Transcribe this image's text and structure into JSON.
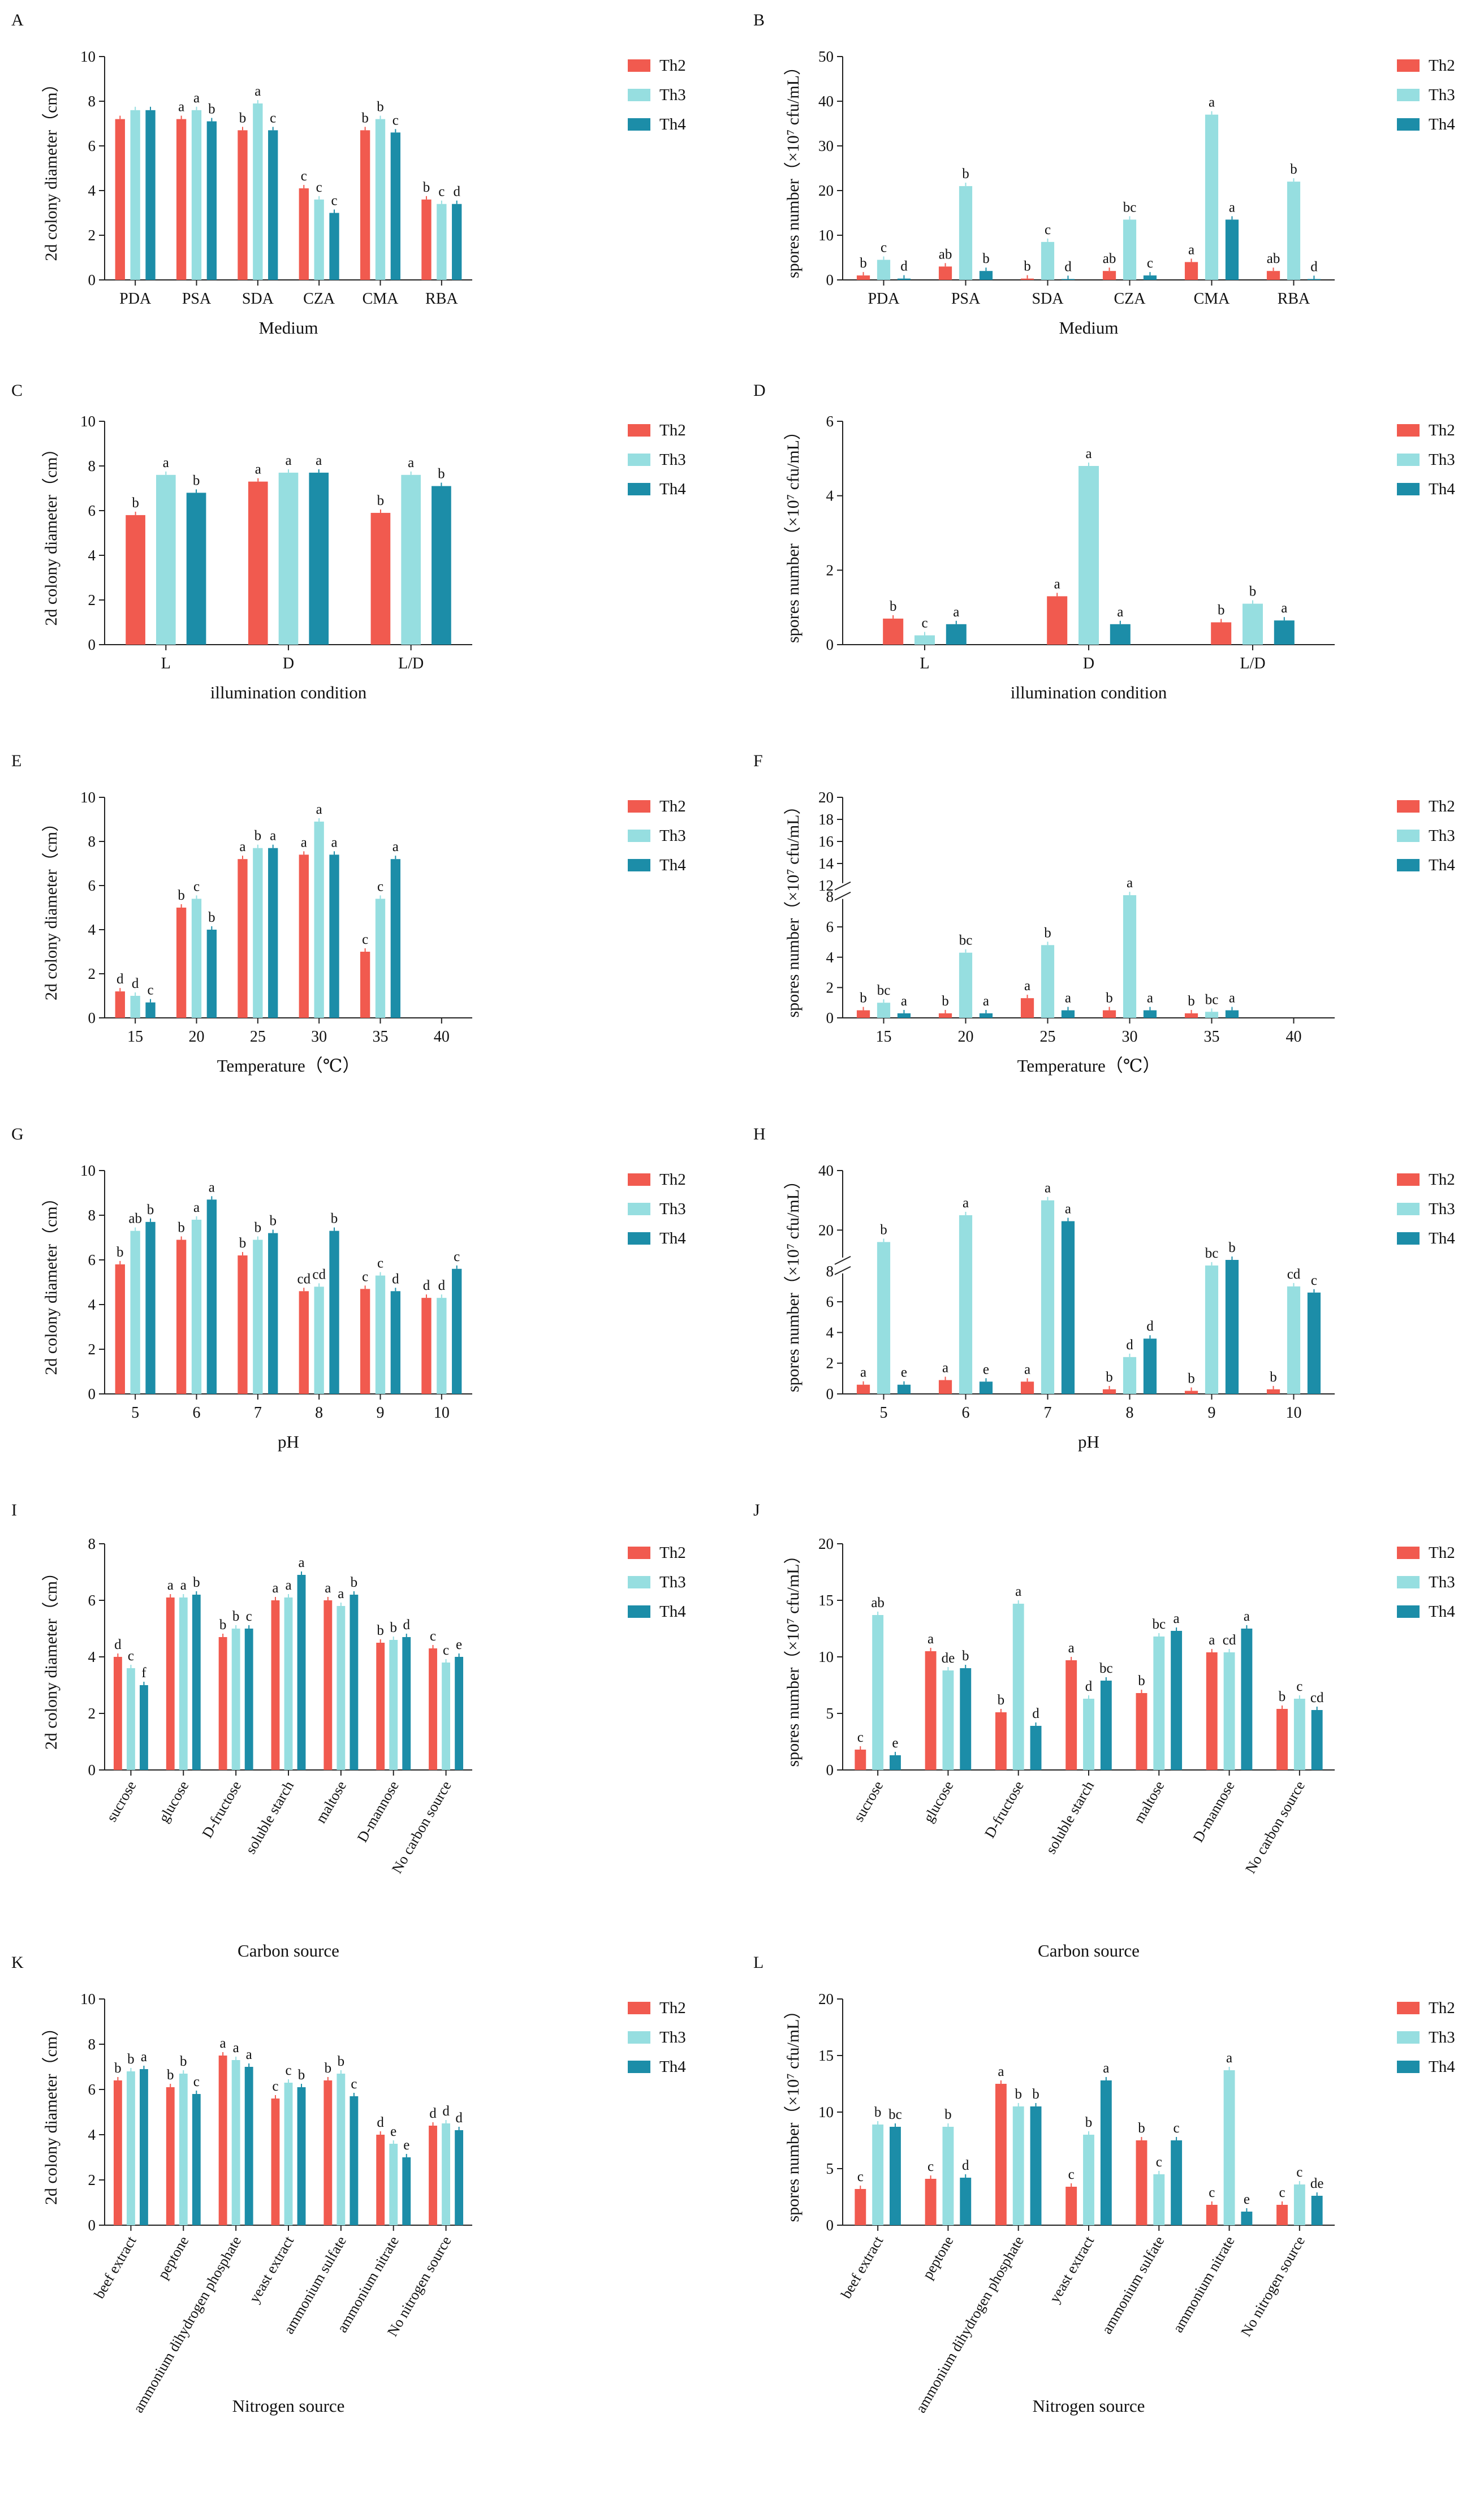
{
  "colors": {
    "Th2": "#f15a4f",
    "Th3": "#96dee0",
    "Th4": "#1c8da8",
    "axis": "#222222"
  },
  "chart_data": [
    {
      "panel": "A",
      "type": "bar",
      "ylabel": "2d colony diameter（cm）",
      "xlabel": "Medium",
      "ylim": [
        0,
        10
      ],
      "yticks": [
        0,
        2,
        4,
        6,
        8,
        10
      ],
      "categories": [
        "PDA",
        "PSA",
        "SDA",
        "CZA",
        "CMA",
        "RBA"
      ],
      "series": [
        {
          "name": "Th2",
          "values": [
            7.2,
            7.2,
            6.7,
            4.1,
            6.7,
            3.6
          ],
          "letters": [
            "",
            "a",
            "b",
            "c",
            "b",
            "b"
          ]
        },
        {
          "name": "Th3",
          "values": [
            7.6,
            7.6,
            7.9,
            3.6,
            7.2,
            3.4
          ],
          "letters": [
            "",
            "a",
            "a",
            "c",
            "b",
            "c"
          ]
        },
        {
          "name": "Th4",
          "values": [
            7.6,
            7.1,
            6.7,
            3.0,
            6.6,
            3.4
          ],
          "letters": [
            "",
            "b",
            "c",
            "c",
            "c",
            "d"
          ]
        }
      ],
      "legend": [
        "Th2",
        "Th3",
        "Th4"
      ]
    },
    {
      "panel": "B",
      "type": "bar",
      "ylabel": "spores number（×10⁷ cfu/mL）",
      "xlabel": "Medium",
      "ylim": [
        0,
        50
      ],
      "yticks": [
        0,
        10,
        20,
        30,
        40,
        50
      ],
      "categories": [
        "PDA",
        "PSA",
        "SDA",
        "CZA",
        "CMA",
        "RBA"
      ],
      "series": [
        {
          "name": "Th2",
          "values": [
            1.0,
            3.0,
            0.3,
            2.0,
            4.0,
            2.0
          ],
          "letters": [
            "b",
            "ab",
            "b",
            "ab",
            "a",
            "ab"
          ]
        },
        {
          "name": "Th3",
          "values": [
            4.5,
            21,
            8.5,
            13.5,
            37,
            22
          ],
          "letters": [
            "c",
            "b",
            "c",
            "bc",
            "a",
            "b"
          ]
        },
        {
          "name": "Th4",
          "values": [
            0.3,
            2.0,
            0.2,
            1.0,
            13.5,
            0.2
          ],
          "letters": [
            "d",
            "b",
            "d",
            "c",
            "a",
            "d"
          ]
        }
      ],
      "legend": [
        "Th2",
        "Th3",
        "Th4"
      ]
    },
    {
      "panel": "C",
      "type": "bar",
      "ylabel": "2d colony diameter（cm）",
      "xlabel": "illumination condition",
      "ylim": [
        0,
        10
      ],
      "yticks": [
        0,
        2,
        4,
        6,
        8,
        10
      ],
      "categories": [
        "L",
        "D",
        "L/D"
      ],
      "series": [
        {
          "name": "Th2",
          "values": [
            5.8,
            7.3,
            5.9
          ],
          "letters": [
            "b",
            "a",
            "b"
          ]
        },
        {
          "name": "Th3",
          "values": [
            7.6,
            7.7,
            7.6
          ],
          "letters": [
            "a",
            "a",
            "a"
          ]
        },
        {
          "name": "Th4",
          "values": [
            6.8,
            7.7,
            7.1
          ],
          "letters": [
            "b",
            "a",
            "b"
          ]
        }
      ],
      "legend": [
        "Th2",
        "Th3",
        "Th4"
      ]
    },
    {
      "panel": "D",
      "type": "bar",
      "ylabel": "spores number（×10⁷ cfu/mL）",
      "xlabel": "illumination condition",
      "ylim": [
        0,
        6
      ],
      "yticks": [
        0,
        2,
        4,
        6
      ],
      "categories": [
        "L",
        "D",
        "L/D"
      ],
      "series": [
        {
          "name": "Th2",
          "values": [
            0.7,
            1.3,
            0.6
          ],
          "letters": [
            "b",
            "a",
            "b"
          ]
        },
        {
          "name": "Th3",
          "values": [
            0.25,
            4.8,
            1.1
          ],
          "letters": [
            "c",
            "a",
            "b"
          ]
        },
        {
          "name": "Th4",
          "values": [
            0.55,
            0.55,
            0.65
          ],
          "letters": [
            "a",
            "a",
            "a"
          ]
        }
      ],
      "legend": [
        "Th2",
        "Th3",
        "Th4"
      ]
    },
    {
      "panel": "E",
      "type": "bar",
      "ylabel": "2d colony diameter（cm）",
      "xlabel": "Temperature（℃）",
      "ylim": [
        0,
        10
      ],
      "yticks": [
        0,
        2,
        4,
        6,
        8,
        10
      ],
      "categories": [
        "15",
        "20",
        "25",
        "30",
        "35",
        "40"
      ],
      "series": [
        {
          "name": "Th2",
          "values": [
            1.2,
            5.0,
            7.2,
            7.4,
            3.0,
            0
          ],
          "letters": [
            "d",
            "b",
            "a",
            "a",
            "c",
            ""
          ]
        },
        {
          "name": "Th3",
          "values": [
            1.0,
            5.4,
            7.7,
            8.9,
            5.4,
            0
          ],
          "letters": [
            "d",
            "c",
            "b",
            "a",
            "c",
            ""
          ]
        },
        {
          "name": "Th4",
          "values": [
            0.7,
            4.0,
            7.7,
            7.4,
            7.2,
            0
          ],
          "letters": [
            "c",
            "b",
            "a",
            "a",
            "a",
            ""
          ]
        }
      ],
      "legend": [
        "Th2",
        "Th3",
        "Th4"
      ]
    },
    {
      "panel": "F",
      "type": "bar",
      "ylabel": "spores number（×10⁷ cfu/mL）",
      "xlabel": "Temperature（℃）",
      "ylim": [
        0,
        20
      ],
      "yticks": [
        0,
        2,
        4,
        6,
        8,
        12,
        14,
        16,
        18,
        20
      ],
      "axis_break": [
        8,
        12
      ],
      "categories": [
        "15",
        "20",
        "25",
        "30",
        "35",
        "40"
      ],
      "series": [
        {
          "name": "Th2",
          "values": [
            0.5,
            0.3,
            1.3,
            0.5,
            0.3,
            0
          ],
          "letters": [
            "b",
            "b",
            "a",
            "b",
            "b",
            ""
          ]
        },
        {
          "name": "Th3",
          "values": [
            1.0,
            4.3,
            4.8,
            8.5,
            0.4,
            0
          ],
          "letters": [
            "bc",
            "bc",
            "b",
            "a",
            "bc",
            ""
          ]
        },
        {
          "name": "Th4",
          "values": [
            0.3,
            0.3,
            0.5,
            0.5,
            0.5,
            0
          ],
          "letters": [
            "a",
            "a",
            "a",
            "a",
            "a",
            ""
          ]
        }
      ],
      "legend": [
        "Th2",
        "Th3",
        "Th4"
      ]
    },
    {
      "panel": "G",
      "type": "bar",
      "ylabel": "2d colony diameter（cm）",
      "xlabel": "pH",
      "ylim": [
        0,
        10
      ],
      "yticks": [
        0,
        2,
        4,
        6,
        8,
        10
      ],
      "categories": [
        "5",
        "6",
        "7",
        "8",
        "9",
        "10"
      ],
      "series": [
        {
          "name": "Th2",
          "values": [
            5.8,
            6.9,
            6.2,
            4.6,
            4.7,
            4.3
          ],
          "letters": [
            "b",
            "b",
            "b",
            "cd",
            "c",
            "d"
          ]
        },
        {
          "name": "Th3",
          "values": [
            7.3,
            7.8,
            6.9,
            4.8,
            5.3,
            4.3
          ],
          "letters": [
            "ab",
            "a",
            "b",
            "cd",
            "c",
            "d"
          ]
        },
        {
          "name": "Th4",
          "values": [
            7.7,
            8.7,
            7.2,
            7.3,
            4.6,
            5.6
          ],
          "letters": [
            "b",
            "a",
            "b",
            "b",
            "d",
            "c"
          ]
        }
      ],
      "legend": [
        "Th2",
        "Th3",
        "Th4"
      ]
    },
    {
      "panel": "H",
      "type": "bar",
      "ylabel": "spores number（×10⁷ cfu/mL）",
      "xlabel": "pH",
      "ylim": [
        0,
        40
      ],
      "yticks": [
        0,
        2,
        4,
        6,
        8,
        20,
        40
      ],
      "axis_break": [
        8,
        10
      ],
      "categories": [
        "5",
        "6",
        "7",
        "8",
        "9",
        "10"
      ],
      "series": [
        {
          "name": "Th2",
          "values": [
            0.6,
            0.9,
            0.8,
            0.3,
            0.2,
            0.3
          ],
          "letters": [
            "a",
            "a",
            "a",
            "b",
            "b",
            "b"
          ]
        },
        {
          "name": "Th3",
          "values": [
            16,
            25,
            30,
            2.4,
            9,
            7
          ],
          "letters": [
            "b",
            "a",
            "a",
            "d",
            "bc",
            "cd"
          ]
        },
        {
          "name": "Th4",
          "values": [
            0.6,
            0.8,
            23,
            3.6,
            10,
            6.6
          ],
          "letters": [
            "e",
            "e",
            "a",
            "d",
            "b",
            "c"
          ]
        }
      ],
      "legend": [
        "Th2",
        "Th3",
        "Th4"
      ]
    },
    {
      "panel": "I",
      "type": "bar",
      "ylabel": "2d colony diameter（cm）",
      "xlabel": "Carbon source",
      "ylim": [
        0,
        8
      ],
      "yticks": [
        0,
        2,
        4,
        6,
        8
      ],
      "rotate_labels": true,
      "categories": [
        "sucrose",
        "glucose",
        "D-fructose",
        "soluble starch",
        "maltose",
        "D-mannose",
        "No carbon source"
      ],
      "series": [
        {
          "name": "Th2",
          "values": [
            4.0,
            6.1,
            4.7,
            6.0,
            6.0,
            4.5,
            4.3
          ],
          "letters": [
            "d",
            "a",
            "b",
            "a",
            "a",
            "b",
            "c"
          ]
        },
        {
          "name": "Th3",
          "values": [
            3.6,
            6.1,
            5.0,
            6.1,
            5.8,
            4.6,
            3.8
          ],
          "letters": [
            "c",
            "a",
            "b",
            "a",
            "a",
            "b",
            "c"
          ]
        },
        {
          "name": "Th4",
          "values": [
            3.0,
            6.2,
            5.0,
            6.9,
            6.2,
            4.7,
            4.0
          ],
          "letters": [
            "f",
            "b",
            "c",
            "a",
            "b",
            "d",
            "e"
          ]
        }
      ],
      "legend": [
        "Th2",
        "Th3",
        "Th4"
      ]
    },
    {
      "panel": "J",
      "type": "bar",
      "ylabel": "spores number（×10⁷ cfu/mL）",
      "xlabel": "Carbon source",
      "ylim": [
        0,
        20
      ],
      "yticks": [
        0,
        5,
        10,
        15,
        20
      ],
      "rotate_labels": true,
      "categories": [
        "sucrose",
        "glucose",
        "D-fructose",
        "soluble starch",
        "maltose",
        "D-mannose",
        "No carbon source"
      ],
      "series": [
        {
          "name": "Th2",
          "values": [
            1.8,
            10.5,
            5.1,
            9.7,
            6.8,
            10.4,
            5.4
          ],
          "letters": [
            "c",
            "a",
            "b",
            "a",
            "b",
            "a",
            "b"
          ]
        },
        {
          "name": "Th3",
          "values": [
            13.7,
            8.8,
            14.7,
            6.3,
            11.8,
            10.4,
            6.3
          ],
          "letters": [
            "ab",
            "de",
            "a",
            "d",
            "bc",
            "cd",
            "c"
          ]
        },
        {
          "name": "Th4",
          "values": [
            1.3,
            9.0,
            3.9,
            7.9,
            12.3,
            12.5,
            5.3
          ],
          "letters": [
            "e",
            "b",
            "d",
            "bc",
            "a",
            "a",
            "cd"
          ]
        }
      ],
      "legend": [
        "Th2",
        "Th3",
        "Th4"
      ]
    },
    {
      "panel": "K",
      "type": "bar",
      "ylabel": "2d colony diameter（cm）",
      "xlabel": "Nitrogen source",
      "ylim": [
        0,
        10
      ],
      "yticks": [
        0,
        2,
        4,
        6,
        8,
        10
      ],
      "rotate_labels": true,
      "categories": [
        "beef extract",
        "peptone",
        "ammonium dihydrogen phosphate",
        "yeast extract",
        "ammonium sulfate",
        "ammonium nitrate",
        "No nitrogen source"
      ],
      "series": [
        {
          "name": "Th2",
          "values": [
            6.4,
            6.1,
            7.5,
            5.6,
            6.4,
            4.0,
            4.4
          ],
          "letters": [
            "b",
            "b",
            "a",
            "c",
            "b",
            "d",
            "d"
          ]
        },
        {
          "name": "Th3",
          "values": [
            6.8,
            6.7,
            7.3,
            6.3,
            6.7,
            3.6,
            4.5
          ],
          "letters": [
            "b",
            "b",
            "a",
            "c",
            "b",
            "e",
            "d"
          ]
        },
        {
          "name": "Th4",
          "values": [
            6.9,
            5.8,
            7.0,
            6.1,
            5.7,
            3.0,
            4.2
          ],
          "letters": [
            "a",
            "c",
            "a",
            "b",
            "c",
            "e",
            "d"
          ]
        }
      ],
      "legend": [
        "Th2",
        "Th3",
        "Th4"
      ]
    },
    {
      "panel": "L",
      "type": "bar",
      "ylabel": "spores number（×10⁷ cfu/mL）",
      "xlabel": "Nitrogen source",
      "ylim": [
        0,
        20
      ],
      "yticks": [
        0,
        5,
        10,
        15,
        20
      ],
      "rotate_labels": true,
      "categories": [
        "beef extract",
        "peptone",
        "ammonium dihydrogen phosphate",
        "yeast extract",
        "ammonium sulfate",
        "ammonium nitrate",
        "No nitrogen source"
      ],
      "series": [
        {
          "name": "Th2",
          "values": [
            3.2,
            4.1,
            12.5,
            3.4,
            7.5,
            1.8,
            1.8
          ],
          "letters": [
            "c",
            "c",
            "a",
            "c",
            "b",
            "c",
            "c"
          ]
        },
        {
          "name": "Th3",
          "values": [
            8.9,
            8.7,
            10.5,
            8.0,
            4.5,
            13.7,
            3.6
          ],
          "letters": [
            "b",
            "b",
            "b",
            "b",
            "c",
            "a",
            "c"
          ]
        },
        {
          "name": "Th4",
          "values": [
            8.7,
            4.2,
            10.5,
            12.8,
            7.5,
            1.2,
            2.6
          ],
          "letters": [
            "bc",
            "d",
            "b",
            "a",
            "c",
            "e",
            "de"
          ]
        }
      ],
      "legend": [
        "Th2",
        "Th3",
        "Th4"
      ]
    }
  ]
}
